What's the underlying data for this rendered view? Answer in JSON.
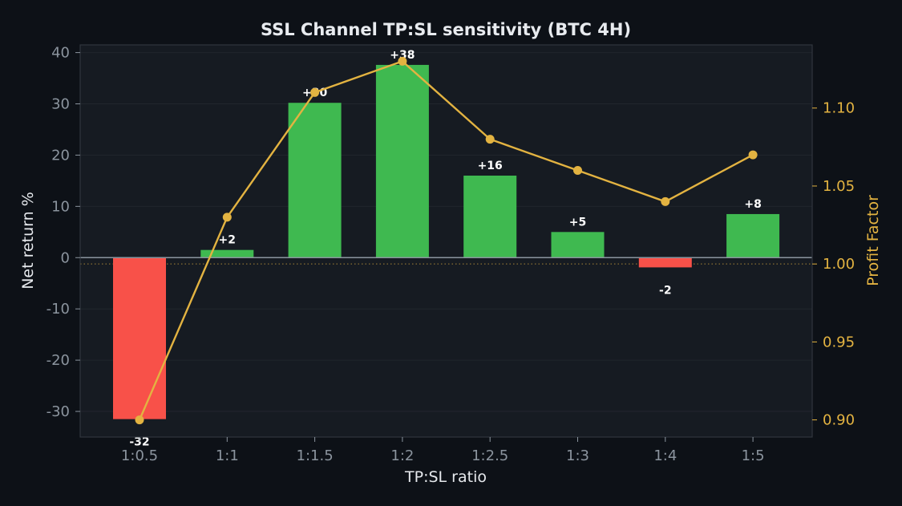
{
  "chart_data": {
    "type": "bar",
    "title": "SSL Channel TP:SL sensitivity (BTC 4H)",
    "xlabel": "TP:SL ratio",
    "ylabel": "Net return %",
    "ylabel_right": "Profit Factor",
    "categories": [
      "1:0.5",
      "1:1",
      "1:1.5",
      "1:2",
      "1:2.5",
      "1:3",
      "1:4",
      "1:5"
    ],
    "series": [
      {
        "name": "Net return %",
        "type": "bar",
        "axis": "left",
        "values": [
          -31.5,
          1.5,
          30.2,
          37.6,
          16.0,
          5.0,
          -1.9,
          8.5
        ],
        "data_labels": [
          "-32",
          "+2",
          "+30",
          "+38",
          "+16",
          "+5",
          "-2",
          "+8"
        ]
      },
      {
        "name": "Profit Factor",
        "type": "line",
        "axis": "right",
        "values": [
          0.9,
          1.03,
          1.11,
          1.13,
          1.08,
          1.06,
          1.04,
          1.07
        ]
      }
    ],
    "ylim": [
      -35,
      41.5
    ],
    "yticks": [
      -30,
      -20,
      -10,
      0,
      10,
      20,
      30,
      40
    ],
    "ylim_right": [
      0.889,
      1.1405
    ],
    "yticks_right": [
      "0.90",
      "0.95",
      "1.00",
      "1.05",
      "1.10"
    ],
    "yticks_right_values": [
      0.9,
      0.95,
      1.0,
      1.05,
      1.1
    ],
    "reference_line_right": 1.0,
    "grid": true,
    "colors": {
      "background": "#0d1117",
      "plot_background": "#161b22",
      "positive_bar": "#3fb950",
      "negative_bar": "#f85149",
      "line": "#e3b341",
      "zero_line": "#8b949e",
      "grid": "#21262d",
      "spine": "#30363d",
      "tick_text": "#8b949e",
      "right_axis_text": "#e3b341"
    }
  }
}
